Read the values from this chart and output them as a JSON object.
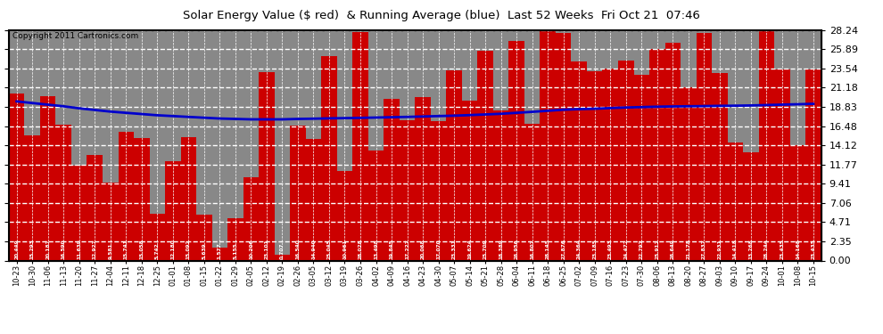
{
  "title": "Solar Energy Value ($ red)  & Running Average (blue)  Last 52 Weeks  Fri Oct 21  07:46",
  "copyright": "Copyright 2011 Cartronics.com",
  "bar_color": "#cc0000",
  "line_color": "#0000cc",
  "background_color": "#ffffff",
  "plot_bg_color": "#888888",
  "grid_color": "#ffffff",
  "ylim": [
    0.0,
    28.24
  ],
  "yticks": [
    0.0,
    2.35,
    4.71,
    7.06,
    9.41,
    11.77,
    14.12,
    16.48,
    18.83,
    21.18,
    23.54,
    25.89,
    28.24
  ],
  "dates": [
    "10-23",
    "10-30",
    "11-06",
    "11-13",
    "11-20",
    "11-27",
    "12-04",
    "12-11",
    "12-18",
    "12-25",
    "01-01",
    "01-08",
    "01-15",
    "01-22",
    "01-29",
    "02-05",
    "02-12",
    "02-19",
    "02-26",
    "03-05",
    "03-12",
    "03-19",
    "03-26",
    "04-02",
    "04-09",
    "04-16",
    "04-23",
    "04-30",
    "05-07",
    "05-14",
    "05-21",
    "05-28",
    "06-04",
    "06-11",
    "06-18",
    "06-25",
    "07-02",
    "07-09",
    "07-16",
    "07-23",
    "07-30",
    "08-06",
    "08-13",
    "08-20",
    "08-27",
    "09-03",
    "09-10",
    "09-17",
    "09-24",
    "10-01",
    "10-08",
    "10-15"
  ],
  "values": [
    20.449,
    15.293,
    20.187,
    16.59,
    11.639,
    12.927,
    9.581,
    15.741,
    15.058,
    5.742,
    12.18,
    15.092,
    5.639,
    1.577,
    5.155,
    10.206,
    23.101,
    0.707,
    16.54,
    14.94,
    25.045,
    10.961,
    28.028,
    13.498,
    19.845,
    17.227,
    20.068,
    17.07,
    23.331,
    19.624,
    25.709,
    18.389,
    26.956,
    16.807,
    28.145,
    27.876,
    24.364,
    23.185,
    23.493,
    24.472,
    22.797,
    25.912,
    26.649,
    21.178,
    27.837,
    22.931,
    14.418,
    13.268,
    28.244,
    23.435,
    14.168,
    23.435
  ],
  "running_avg": [
    19.5,
    19.3,
    19.1,
    18.9,
    18.65,
    18.45,
    18.25,
    18.1,
    17.95,
    17.8,
    17.7,
    17.6,
    17.5,
    17.4,
    17.35,
    17.3,
    17.3,
    17.3,
    17.35,
    17.38,
    17.42,
    17.45,
    17.48,
    17.52,
    17.56,
    17.6,
    17.65,
    17.7,
    17.75,
    17.82,
    17.9,
    17.98,
    18.1,
    18.22,
    18.35,
    18.48,
    18.55,
    18.6,
    18.68,
    18.75,
    18.8,
    18.85,
    18.88,
    18.9,
    18.92,
    18.95,
    18.97,
    19.0,
    19.05,
    19.1,
    19.15,
    19.2
  ]
}
